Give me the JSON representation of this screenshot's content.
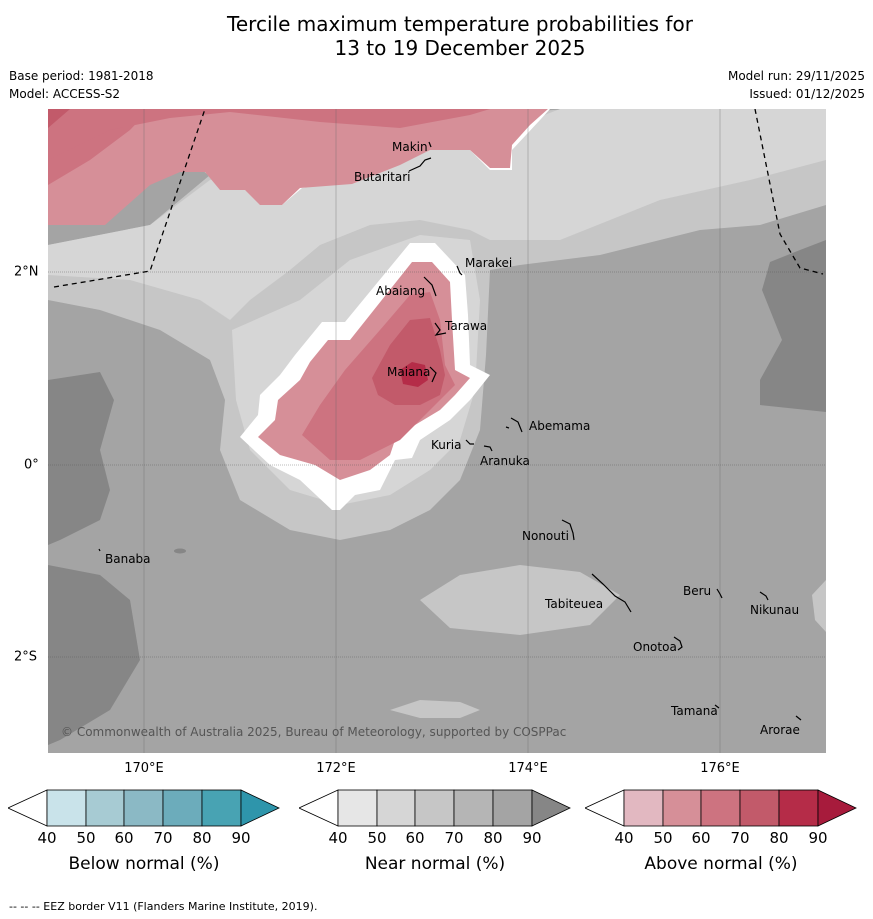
{
  "title_line1": "Tercile maximum temperature probabilities for",
  "title_line2": "13 to 19 December 2025",
  "meta": {
    "base_period": "Base period: 1981-2018",
    "model": "Model: ACCESS-S2",
    "model_run": "Model run: 29/11/2025",
    "issued": "Issued: 01/12/2025"
  },
  "map": {
    "copyright": "© Commonwealth of Australia 2025, Bureau of Meteorology, supported by COSPPac",
    "lon_labels": [
      "170°E",
      "172°E",
      "174°E",
      "176°E"
    ],
    "lat_labels": [
      "2°N",
      "0°",
      "2°S"
    ],
    "islands": [
      "Makin",
      "Butaritari",
      "Marakei",
      "Abaiang",
      "Tarawa",
      "Maiana",
      "Abemama",
      "Kuria",
      "Aranuka",
      "Nonouti",
      "Banaba",
      "Beru",
      "Tabiteuea",
      "Nikunau",
      "Onotoa",
      "Tamana",
      "Arorae"
    ]
  },
  "colorbars": [
    {
      "label": "Below normal (%)",
      "ticks": [
        "40",
        "50",
        "60",
        "70",
        "80",
        "90"
      ],
      "colors": [
        "#ffffff",
        "#c9e3ea",
        "#a7cbd3",
        "#8bb9c5",
        "#6cacbb",
        "#48a3b3",
        "#2e95ab"
      ]
    },
    {
      "label": "Near normal (%)",
      "ticks": [
        "40",
        "50",
        "60",
        "70",
        "80",
        "90"
      ],
      "colors": [
        "#ffffff",
        "#e6e6e6",
        "#d6d6d6",
        "#c6c6c6",
        "#b5b5b5",
        "#a4a4a4",
        "#868686"
      ]
    },
    {
      "label": "Above normal (%)",
      "ticks": [
        "40",
        "50",
        "60",
        "70",
        "80",
        "90"
      ],
      "colors": [
        "#ffffff",
        "#e2b8c1",
        "#d68f98",
        "#cd7380",
        "#c25a6a",
        "#b52c48",
        "#a71b3c"
      ]
    }
  ],
  "footer": "--  --  -- EEZ border V11 (Flanders Marine Institute, 2019)."
}
